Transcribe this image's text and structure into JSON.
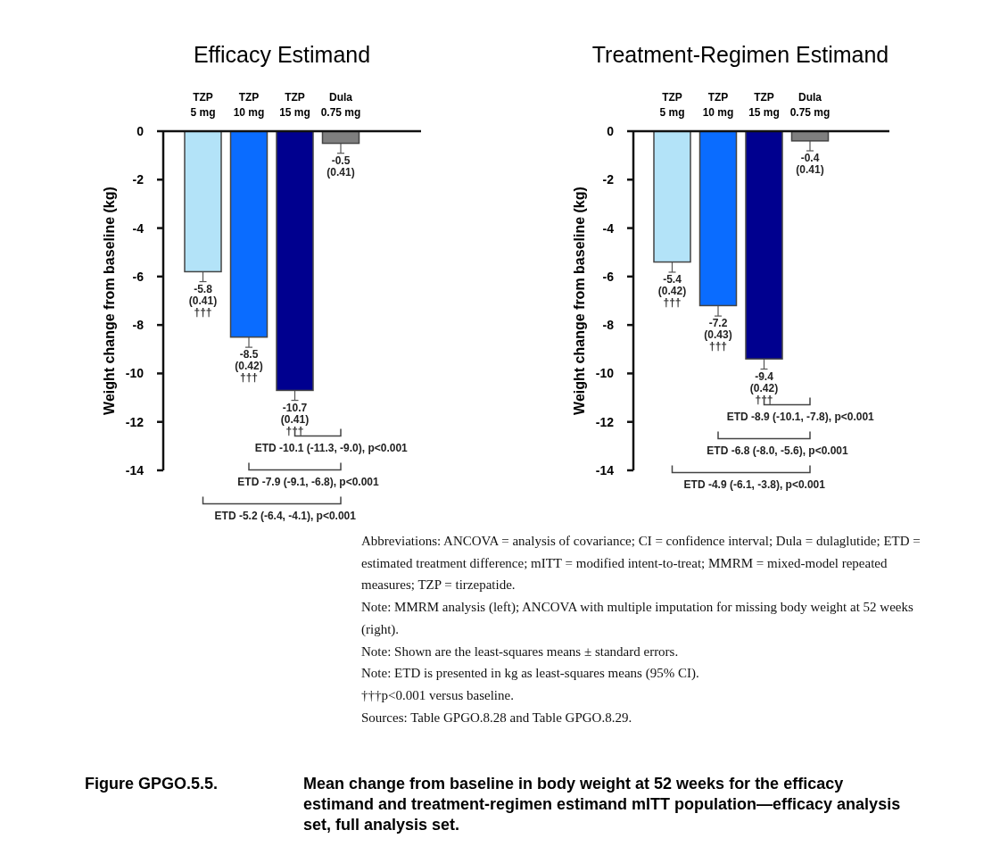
{
  "chart_data": [
    {
      "type": "bar",
      "title": "Efficacy Estimand",
      "ylabel": "Weight change from baseline (kg)",
      "categories": [
        "TZP\n5 mg",
        "TZP\n10 mg",
        "TZP\n15 mg",
        "Dula\n0.75 mg"
      ],
      "values": [
        -5.8,
        -8.5,
        -10.7,
        -0.5
      ],
      "colors": [
        "#b3e3f8",
        "#0a6cff",
        "#00008f",
        "#7f7f7f"
      ],
      "errors": [
        0.41,
        0.42,
        0.41,
        0.41
      ],
      "value_labels": [
        "-5.8\n(0.41)\n†††",
        "-8.5\n(0.42)\n†††",
        "-10.7\n(0.41)\n†††",
        "-0.5\n(0.41)"
      ],
      "ylim": [
        -14,
        0
      ],
      "yticks": [
        0,
        -2,
        -4,
        -6,
        -8,
        -10,
        -12,
        -14
      ],
      "grid": false,
      "annotations": [
        "ETD -10.1 (-11.3, -9.0), p<0.001",
        "ETD -7.9 (-9.1, -6.8), p<0.001",
        "ETD -5.2 (-6.4, -4.1), p<0.001"
      ]
    },
    {
      "type": "bar",
      "title": "Treatment-Regimen Estimand",
      "ylabel": "Weight change from baseline (kg)",
      "categories": [
        "TZP\n5 mg",
        "TZP\n10 mg",
        "TZP\n15 mg",
        "Dula\n0.75 mg"
      ],
      "values": [
        -5.4,
        -7.2,
        -9.4,
        -0.4
      ],
      "colors": [
        "#b3e3f8",
        "#0a6cff",
        "#00008f",
        "#7f7f7f"
      ],
      "errors": [
        0.42,
        0.43,
        0.42,
        0.41
      ],
      "value_labels": [
        "-5.4\n(0.42)\n†††",
        "-7.2\n(0.43)\n†††",
        "-9.4\n(0.42)\n†††",
        "-0.4\n(0.41)"
      ],
      "ylim": [
        -14,
        0
      ],
      "yticks": [
        0,
        -2,
        -4,
        -6,
        -8,
        -10,
        -12,
        -14
      ],
      "grid": false,
      "annotations": [
        "ETD -8.9 (-10.1, -7.8), p<0.001",
        "ETD -6.8 (-8.0, -5.6), p<0.001",
        "ETD -4.9 (-6.1, -3.8), p<0.001"
      ]
    },
    {
      "type": "other",
      "title": "Figure GPGO.5.5.",
      "subtitle": "Mean change from baseline in body weight at 52 weeks for the efficacy estimand and treatment-regimen estimand mITT population—efficacy analysis set, full analysis set.",
      "annotations": [
        "Abbreviations: ANCOVA = analysis of covariance; CI = confidence interval; Dula = dulaglutide; ETD = estimated treatment difference; mITT = modified intent-to-treat; MMRM = mixed-model repeated measures; TZP = tirzepatide.",
        "Note: MMRM analysis (left); ANCOVA with multiple imputation for missing body weight at 52 weeks (right).",
        "Note: Shown are the least-squares means ± standard errors.",
        "Note: ETD is presented in kg as least-squares means (95% CI).",
        "†††p<0.001 versus baseline.",
        "Sources: Table GPGO.8.28 and Table GPGO.8.29."
      ]
    }
  ]
}
